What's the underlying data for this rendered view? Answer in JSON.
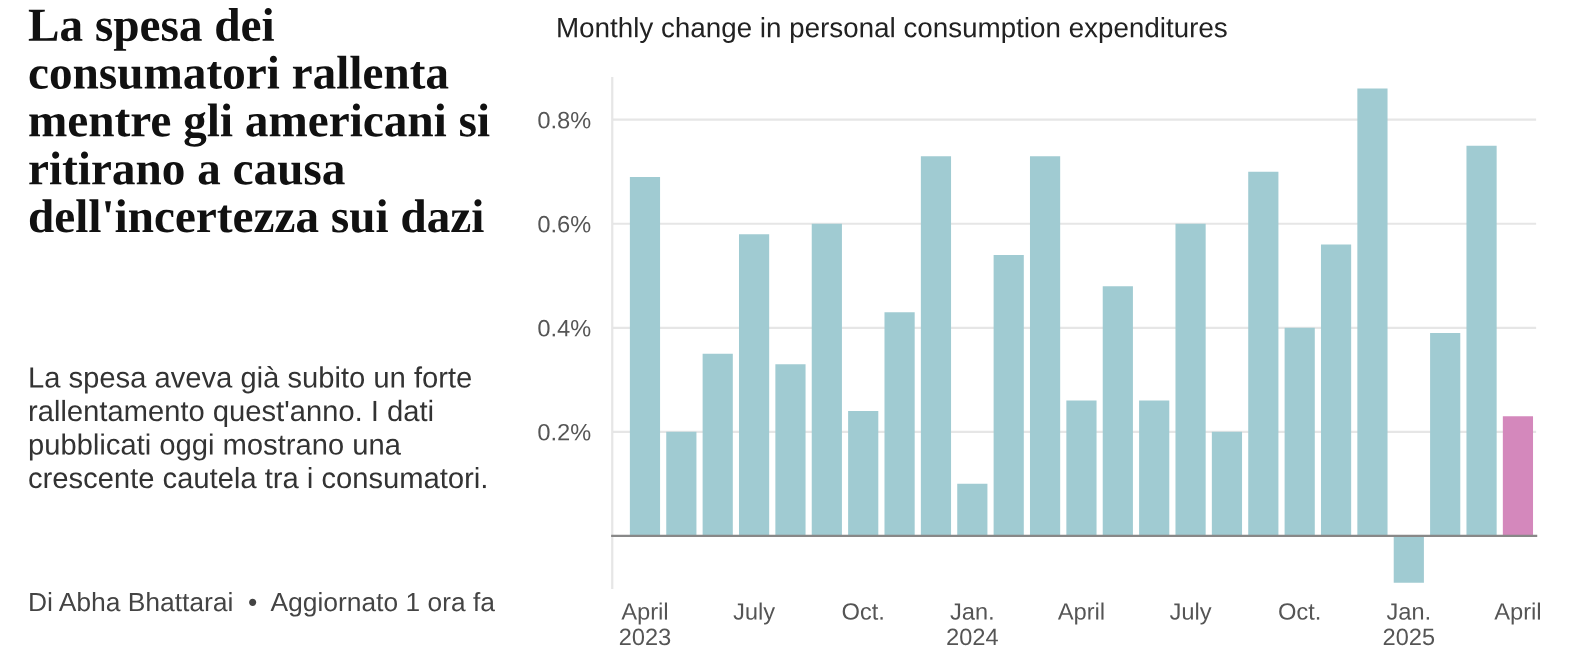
{
  "chart_data": {
    "type": "bar",
    "title": "Monthly change in personal consumption expenditures",
    "categories": [
      "April\n2023",
      null,
      null,
      "July",
      null,
      null,
      "Oct.",
      null,
      null,
      "Jan.\n2024",
      null,
      null,
      "April",
      null,
      null,
      "July",
      null,
      null,
      "Oct.",
      null,
      null,
      "Jan.\n2025",
      null,
      null,
      "April"
    ],
    "values": [
      0.69,
      0.2,
      0.35,
      0.58,
      0.33,
      0.6,
      0.24,
      0.43,
      0.73,
      0.1,
      0.54,
      0.73,
      0.26,
      0.48,
      0.26,
      0.6,
      0.2,
      0.7,
      0.4,
      0.56,
      0.86,
      -0.09,
      0.39,
      0.75,
      0.23
    ],
    "colors": [
      "#a0cbd2",
      "#a0cbd2",
      "#a0cbd2",
      "#a0cbd2",
      "#a0cbd2",
      "#a0cbd2",
      "#a0cbd2",
      "#a0cbd2",
      "#a0cbd2",
      "#a0cbd2",
      "#a0cbd2",
      "#a0cbd2",
      "#a0cbd2",
      "#a0cbd2",
      "#a0cbd2",
      "#a0cbd2",
      "#a0cbd2",
      "#a0cbd2",
      "#a0cbd2",
      "#a0cbd2",
      "#a0cbd2",
      "#a0cbd2",
      "#a0cbd2",
      "#a0cbd2",
      "#d488bc"
    ],
    "ylim": [
      -0.1,
      0.88
    ],
    "yticks": [
      {
        "value": 0.2,
        "label": "0.2%"
      },
      {
        "value": 0.4,
        "label": "0.4%"
      },
      {
        "value": 0.6,
        "label": "0.6%"
      },
      {
        "value": 0.8,
        "label": "0.8%"
      }
    ],
    "grid": "y",
    "annotations": [
      "La spesa dei consumatori rallenta mentre gli americani si ritirano a causa dell'incertezza sui dazi",
      "La spesa aveva già subito un forte rallentamento quest'anno. I dati pubblicati oggi mostrano una crescente cautela tra i consumatori.",
      "Di Abha Bhattarai  •  Aggiornato 1 ora fa"
    ]
  }
}
